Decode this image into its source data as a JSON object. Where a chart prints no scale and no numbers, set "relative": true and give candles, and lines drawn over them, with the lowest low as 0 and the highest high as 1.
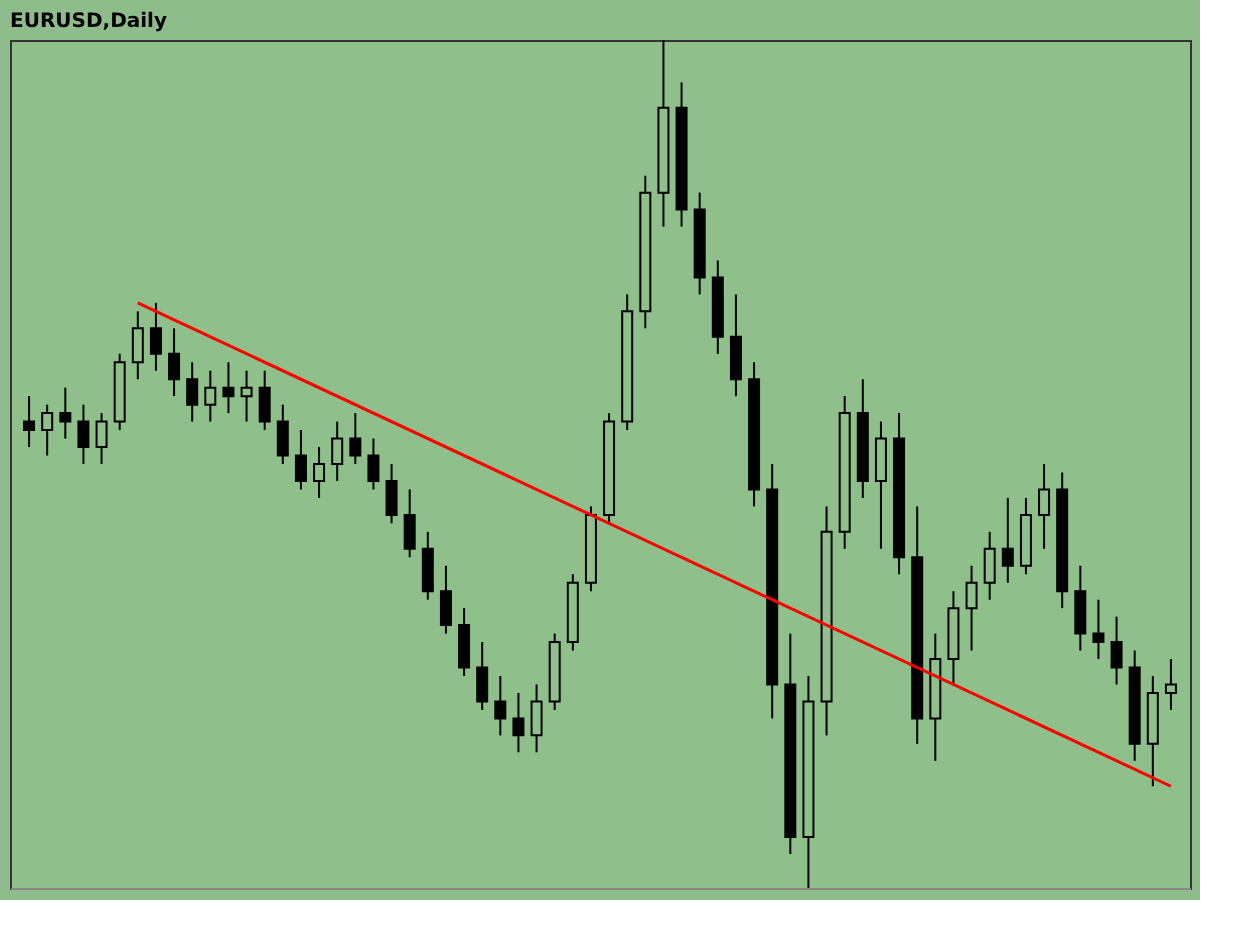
{
  "chart_data": {
    "type": "candlestick",
    "title": "EURUSD,Daily",
    "relative": true,
    "categories": [
      null,
      null,
      null,
      null,
      null,
      null,
      null,
      null,
      null,
      null,
      null,
      null,
      null,
      null,
      null,
      null,
      null,
      null,
      null,
      null,
      null,
      null,
      null,
      null,
      null,
      null,
      null,
      null,
      null,
      null,
      null,
      null,
      null,
      null,
      null,
      null,
      null,
      null,
      null,
      null,
      null,
      null,
      null,
      null,
      null,
      null,
      null,
      null,
      null,
      null,
      null,
      null,
      null,
      null,
      null,
      null,
      null,
      null,
      null,
      null,
      null,
      null,
      null,
      null
    ],
    "ohlc": [
      [
        0.55,
        0.58,
        0.52,
        0.54
      ],
      [
        0.54,
        0.57,
        0.51,
        0.56
      ],
      [
        0.56,
        0.59,
        0.53,
        0.55
      ],
      [
        0.55,
        0.57,
        0.5,
        0.52
      ],
      [
        0.52,
        0.56,
        0.5,
        0.55
      ],
      [
        0.55,
        0.63,
        0.54,
        0.62
      ],
      [
        0.62,
        0.68,
        0.6,
        0.66
      ],
      [
        0.66,
        0.69,
        0.61,
        0.63
      ],
      [
        0.63,
        0.66,
        0.58,
        0.6
      ],
      [
        0.6,
        0.62,
        0.55,
        0.57
      ],
      [
        0.57,
        0.61,
        0.55,
        0.59
      ],
      [
        0.59,
        0.62,
        0.56,
        0.58
      ],
      [
        0.58,
        0.61,
        0.55,
        0.59
      ],
      [
        0.59,
        0.61,
        0.54,
        0.55
      ],
      [
        0.55,
        0.57,
        0.5,
        0.51
      ],
      [
        0.51,
        0.54,
        0.47,
        0.48
      ],
      [
        0.48,
        0.52,
        0.46,
        0.5
      ],
      [
        0.5,
        0.55,
        0.48,
        0.53
      ],
      [
        0.53,
        0.56,
        0.5,
        0.51
      ],
      [
        0.51,
        0.53,
        0.47,
        0.48
      ],
      [
        0.48,
        0.5,
        0.43,
        0.44
      ],
      [
        0.44,
        0.47,
        0.39,
        0.4
      ],
      [
        0.4,
        0.42,
        0.34,
        0.35
      ],
      [
        0.35,
        0.38,
        0.3,
        0.31
      ],
      [
        0.31,
        0.33,
        0.25,
        0.26
      ],
      [
        0.26,
        0.29,
        0.21,
        0.22
      ],
      [
        0.22,
        0.25,
        0.18,
        0.2
      ],
      [
        0.2,
        0.23,
        0.16,
        0.18
      ],
      [
        0.18,
        0.24,
        0.16,
        0.22
      ],
      [
        0.22,
        0.3,
        0.21,
        0.29
      ],
      [
        0.29,
        0.37,
        0.28,
        0.36
      ],
      [
        0.36,
        0.45,
        0.35,
        0.44
      ],
      [
        0.44,
        0.56,
        0.43,
        0.55
      ],
      [
        0.55,
        0.7,
        0.54,
        0.68
      ],
      [
        0.68,
        0.84,
        0.66,
        0.82
      ],
      [
        0.82,
        1.0,
        0.78,
        0.92
      ],
      [
        0.92,
        0.95,
        0.78,
        0.8
      ],
      [
        0.8,
        0.82,
        0.7,
        0.72
      ],
      [
        0.72,
        0.74,
        0.63,
        0.65
      ],
      [
        0.65,
        0.7,
        0.58,
        0.6
      ],
      [
        0.6,
        0.62,
        0.45,
        0.47
      ],
      [
        0.47,
        0.5,
        0.2,
        0.24
      ],
      [
        0.24,
        0.3,
        0.04,
        0.06
      ],
      [
        0.06,
        0.25,
        0.0,
        0.22
      ],
      [
        0.22,
        0.45,
        0.18,
        0.42
      ],
      [
        0.42,
        0.58,
        0.4,
        0.56
      ],
      [
        0.56,
        0.6,
        0.46,
        0.48
      ],
      [
        0.48,
        0.55,
        0.4,
        0.53
      ],
      [
        0.53,
        0.56,
        0.37,
        0.39
      ],
      [
        0.39,
        0.45,
        0.17,
        0.2
      ],
      [
        0.2,
        0.3,
        0.15,
        0.27
      ],
      [
        0.27,
        0.35,
        0.24,
        0.33
      ],
      [
        0.33,
        0.38,
        0.28,
        0.36
      ],
      [
        0.36,
        0.42,
        0.34,
        0.4
      ],
      [
        0.4,
        0.46,
        0.36,
        0.38
      ],
      [
        0.38,
        0.46,
        0.37,
        0.44
      ],
      [
        0.44,
        0.5,
        0.4,
        0.47
      ],
      [
        0.47,
        0.49,
        0.33,
        0.35
      ],
      [
        0.35,
        0.38,
        0.28,
        0.3
      ],
      [
        0.3,
        0.34,
        0.27,
        0.29
      ],
      [
        0.29,
        0.32,
        0.24,
        0.26
      ],
      [
        0.26,
        0.28,
        0.15,
        0.17
      ],
      [
        0.17,
        0.25,
        0.12,
        0.23
      ],
      [
        0.23,
        0.27,
        0.21,
        0.24
      ]
    ],
    "series": [
      {
        "type": "line",
        "color": "#ff0000",
        "values": [
          null,
          null,
          null,
          null,
          null,
          null,
          0.69,
          null,
          null,
          null,
          null,
          null,
          null,
          null,
          null,
          null,
          null,
          null,
          null,
          null,
          null,
          null,
          null,
          null,
          null,
          null,
          null,
          null,
          null,
          null,
          null,
          null,
          null,
          null,
          null,
          null,
          null,
          null,
          null,
          null,
          null,
          null,
          null,
          null,
          null,
          null,
          null,
          null,
          null,
          null,
          null,
          null,
          null,
          null,
          null,
          null,
          null,
          null,
          null,
          null,
          null,
          null,
          null,
          0.12
        ]
      }
    ]
  }
}
